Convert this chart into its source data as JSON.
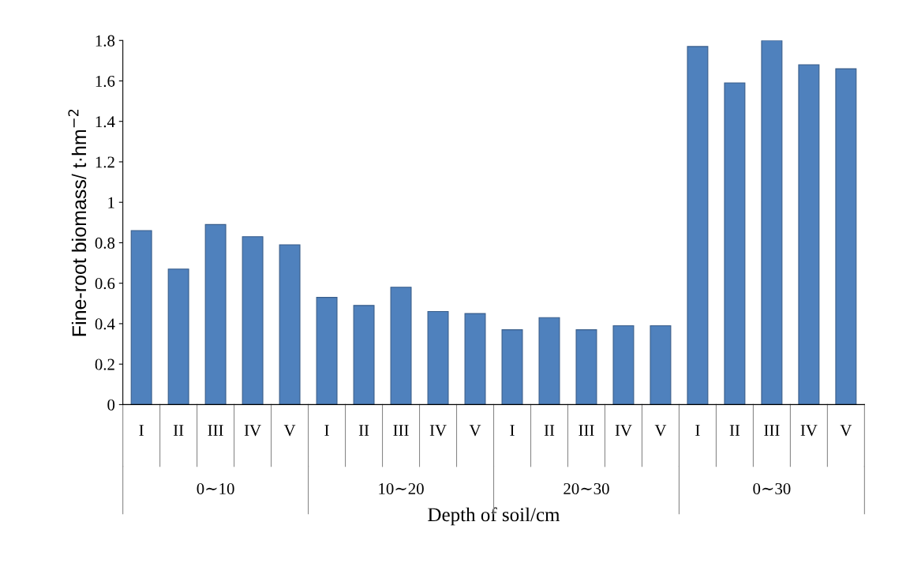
{
  "chart_data": {
    "type": "bar",
    "xlabel": "Depth of soil/cm",
    "ylabel": "Fine-root biomass/ t·hm$^{−2}$",
    "categories": [
      "I",
      "II",
      "III",
      "IV",
      "V",
      "I",
      "II",
      "III",
      "IV",
      "V",
      "I",
      "II",
      "III",
      "IV",
      "V",
      "I",
      "II",
      "III",
      "IV",
      "V"
    ],
    "values": [
      0.86,
      0.67,
      0.89,
      0.83,
      0.79,
      0.53,
      0.49,
      0.58,
      0.46,
      0.45,
      0.37,
      0.43,
      0.37,
      0.39,
      0.39,
      1.77,
      1.59,
      1.8,
      1.68,
      1.66
    ],
    "color": "#4f81bd",
    "annotations": [
      "0∼10",
      "10∼20",
      "20∼30",
      "0∼30"
    ],
    "ylim": [
      0,
      1.8
    ],
    "yticks": [
      0,
      0.2,
      0.4,
      0.6,
      0.8,
      {
        "value": 1,
        "label": "1"
      },
      1.2,
      1.4,
      1.6,
      1.8
    ],
    "grid": false
  }
}
